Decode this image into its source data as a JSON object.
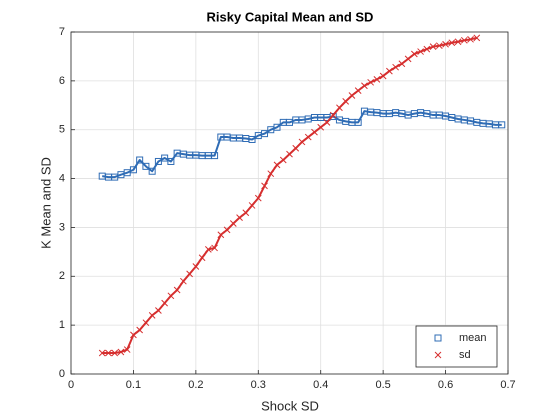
{
  "chart_data": {
    "type": "line",
    "title": "Risky Capital Mean and SD",
    "x_label": "Shock SD",
    "y_label": "K Mean and SD",
    "xlim": [
      0,
      0.7
    ],
    "xticks": [
      0,
      0.1,
      0.2,
      0.3,
      0.4,
      0.5,
      0.6,
      0.7
    ],
    "ylim": [
      0,
      7
    ],
    "yticks": [
      0,
      1,
      2,
      3,
      4,
      5,
      6,
      7
    ],
    "grid": true,
    "legend_location": "southeast",
    "x": [
      0.05,
      0.06,
      0.07,
      0.08,
      0.09,
      0.1,
      0.11,
      0.12,
      0.13,
      0.14,
      0.15,
      0.16,
      0.17,
      0.18,
      0.19,
      0.2,
      0.21,
      0.22,
      0.23,
      0.24,
      0.25,
      0.26,
      0.27,
      0.28,
      0.29,
      0.3,
      0.31,
      0.32,
      0.33,
      0.34,
      0.35,
      0.36,
      0.37,
      0.38,
      0.39,
      0.4,
      0.41,
      0.42,
      0.43,
      0.44,
      0.45,
      0.46,
      0.47,
      0.48,
      0.49,
      0.5,
      0.51,
      0.52,
      0.53,
      0.54,
      0.55,
      0.56,
      0.57,
      0.58,
      0.59,
      0.6,
      0.61,
      0.62,
      0.63,
      0.64,
      0.65,
      0.66,
      0.67,
      0.68,
      0.69
    ],
    "series": [
      {
        "name": "mean",
        "color": "#2f6cb5",
        "marker": "square",
        "values": [
          4.05,
          4.03,
          4.03,
          4.08,
          4.12,
          4.18,
          4.38,
          4.25,
          4.15,
          4.35,
          4.42,
          4.35,
          4.52,
          4.5,
          4.48,
          4.48,
          4.47,
          4.47,
          4.47,
          4.85,
          4.85,
          4.83,
          4.83,
          4.82,
          4.8,
          4.88,
          4.92,
          5.0,
          5.05,
          5.15,
          5.15,
          5.2,
          5.2,
          5.22,
          5.25,
          5.25,
          5.25,
          5.27,
          5.2,
          5.17,
          5.15,
          5.15,
          5.38,
          5.36,
          5.35,
          5.33,
          5.33,
          5.35,
          5.33,
          5.3,
          5.33,
          5.35,
          5.33,
          5.3,
          5.3,
          5.28,
          5.25,
          5.22,
          5.2,
          5.18,
          5.15,
          5.13,
          5.12,
          5.1,
          5.1
        ]
      },
      {
        "name": "sd",
        "color": "#d62f2f",
        "marker": "x",
        "values": [
          0.43,
          0.43,
          0.43,
          0.45,
          0.5,
          0.8,
          0.9,
          1.05,
          1.2,
          1.3,
          1.45,
          1.6,
          1.72,
          1.9,
          2.05,
          2.2,
          2.38,
          2.55,
          2.58,
          2.85,
          2.95,
          3.08,
          3.2,
          3.3,
          3.45,
          3.6,
          3.85,
          4.1,
          4.28,
          4.38,
          4.5,
          4.62,
          4.75,
          4.85,
          4.95,
          5.05,
          5.15,
          5.3,
          5.45,
          5.58,
          5.7,
          5.8,
          5.9,
          5.97,
          6.03,
          6.1,
          6.2,
          6.28,
          6.35,
          6.45,
          6.55,
          6.6,
          6.65,
          6.7,
          6.72,
          6.75,
          6.78,
          6.8,
          6.83,
          6.85,
          6.88,
          null,
          null,
          null,
          null
        ]
      }
    ]
  }
}
